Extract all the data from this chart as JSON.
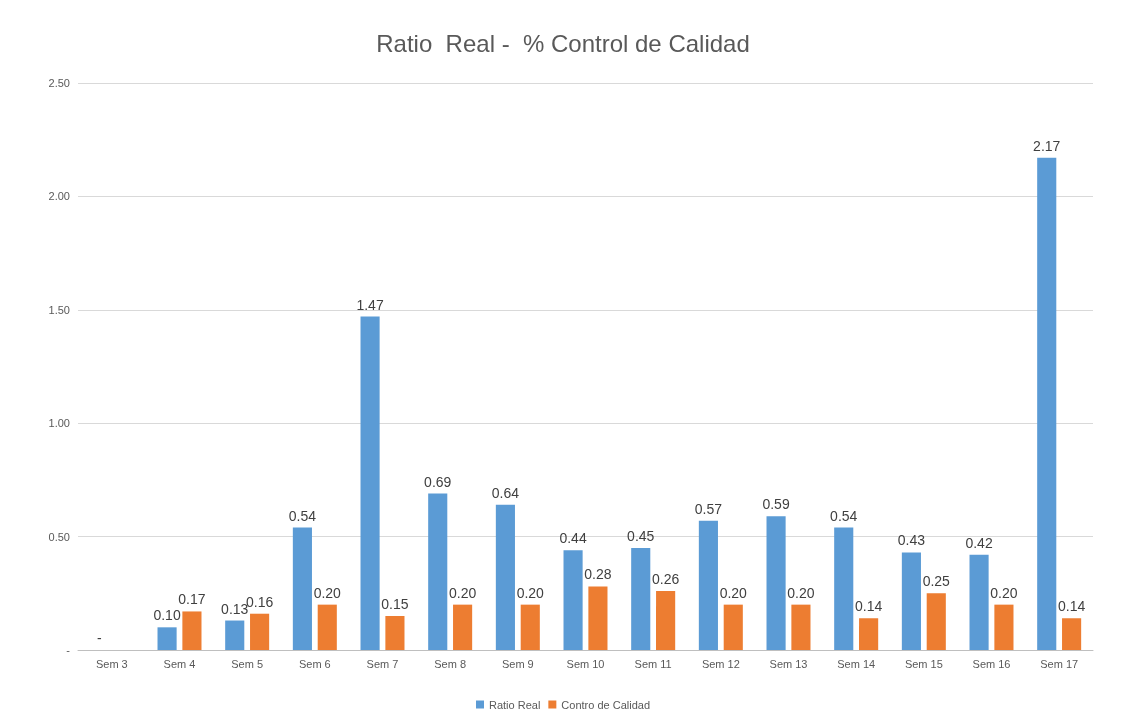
{
  "chart_data": {
    "type": "bar",
    "title": "Ratio  Real -  % Control de Calidad",
    "categories": [
      "Sem 3",
      "Sem 4",
      "Sem 5",
      "Sem 6",
      "Sem 7",
      "Sem 8",
      "Sem 9",
      "Sem 10",
      "Sem 11",
      "Sem 12",
      "Sem 13",
      "Sem 14",
      "Sem 15",
      "Sem 16",
      "Sem 17"
    ],
    "series": [
      {
        "name": "Ratio Real",
        "color": "#5b9bd5",
        "values": [
          0,
          0.1,
          0.13,
          0.54,
          1.47,
          0.69,
          0.64,
          0.44,
          0.45,
          0.57,
          0.59,
          0.54,
          0.43,
          0.42,
          2.17
        ],
        "value_labels": [
          "-",
          "0.10",
          "0.13",
          "0.54",
          "1.47",
          "0.69",
          "0.64",
          "0.44",
          "0.45",
          "0.57",
          "0.59",
          "0.54",
          "0.43",
          "0.42",
          "2.17"
        ]
      },
      {
        "name": "Contro de Calidad",
        "color": "#ed7d31",
        "values": [
          null,
          0.17,
          0.16,
          0.2,
          0.15,
          0.2,
          0.2,
          0.28,
          0.26,
          0.2,
          0.2,
          0.14,
          0.25,
          0.2,
          0.14
        ],
        "value_labels": [
          null,
          "0.17",
          "0.16",
          "0.20",
          "0.15",
          "0.20",
          "0.20",
          "0.28",
          "0.26",
          "0.20",
          "0.20",
          "0.14",
          "0.25",
          "0.20",
          "0.14"
        ]
      }
    ],
    "ylim": [
      0,
      2.5
    ],
    "yticks": [
      {
        "value": 0,
        "label": "-"
      },
      {
        "value": 0.5,
        "label": "0.50"
      },
      {
        "value": 1,
        "label": "1.00"
      },
      {
        "value": 1.5,
        "label": "1.50"
      },
      {
        "value": 2,
        "label": "2.00"
      },
      {
        "value": 2.5,
        "label": "2.50"
      }
    ],
    "grid": "y",
    "legend": "bottom"
  }
}
